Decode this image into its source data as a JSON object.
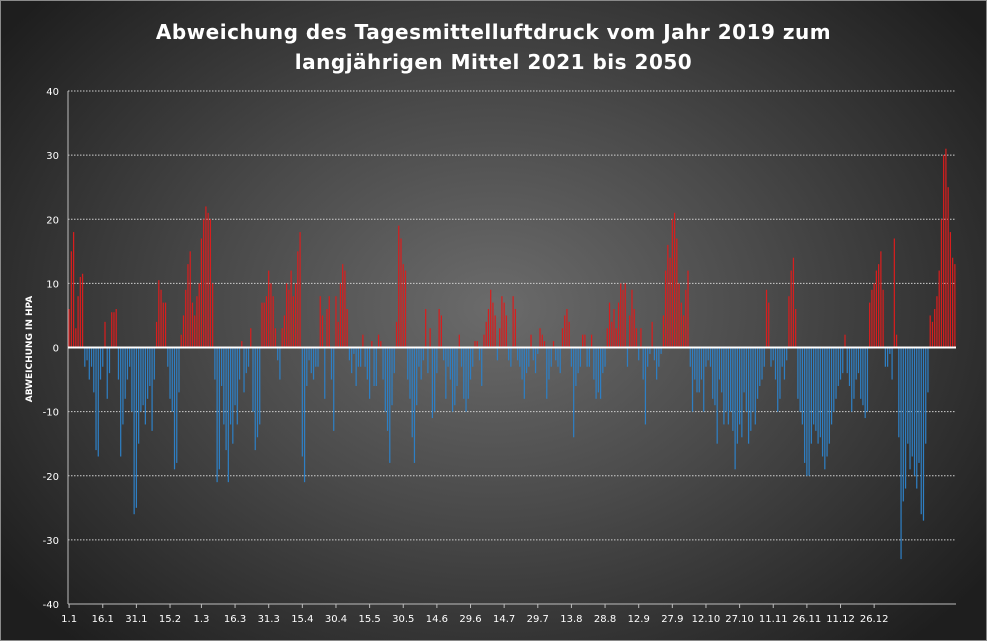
{
  "chart_data": {
    "type": "bar",
    "title_lines": [
      "Abweichung des Tagesmittelluftdruck vom Jahr 2019 zum",
      "langjährigen Mittel 2021 bis 2050"
    ],
    "ylabel": "ABWEICHUNG IN HPA",
    "ylim": [
      -40,
      40
    ],
    "yticks": [
      40,
      30,
      20,
      10,
      0,
      -10,
      -20,
      -30,
      -40
    ],
    "grid": true,
    "xtick_labels": [
      "1.1",
      "16.1",
      "31.1",
      "15.2",
      "1.3",
      "16.3",
      "31.3",
      "15.4",
      "30.4",
      "15.5",
      "30.5",
      "14.6",
      "29.6",
      "14.7",
      "29.7",
      "13.8",
      "28.8",
      "12.9",
      "27.9",
      "12.10",
      "27.10",
      "11.11",
      "26.11",
      "11.12",
      "26.12"
    ],
    "xtick_day_index": [
      0,
      15,
      30,
      45,
      59,
      74,
      89,
      104,
      119,
      134,
      149,
      164,
      179,
      194,
      209,
      224,
      239,
      254,
      269,
      284,
      299,
      314,
      329,
      344,
      359
    ],
    "colors": {
      "positive": "#d81e1e",
      "negative": "#2e7fc4",
      "zero_line": "#ffffff",
      "grid": "#cfcfcf"
    },
    "values": [
      6,
      15,
      18,
      3,
      8,
      11,
      11.5,
      -3,
      -2,
      -5,
      -3,
      -7,
      -16,
      -17,
      -5,
      -3,
      4,
      -8,
      -4,
      5.5,
      5.5,
      6,
      -5,
      -17,
      -12,
      -8,
      -5,
      -3,
      -10,
      -26,
      -25,
      -15,
      -10,
      -9,
      -12,
      -8,
      -6,
      -13,
      -5,
      4,
      10.5,
      9,
      7,
      7,
      -3,
      -8,
      -10,
      -19,
      -18,
      -7,
      2,
      5,
      9,
      13,
      15,
      7,
      5,
      8,
      10,
      17,
      20,
      22,
      21,
      20,
      10,
      -5,
      -21,
      -19,
      -6,
      -12,
      -16,
      -21,
      -12,
      -15,
      -9,
      -12,
      -5,
      1,
      -7,
      -4,
      -3,
      3,
      -10,
      -16,
      -14,
      -12,
      7,
      7,
      8,
      12,
      10,
      8,
      3,
      -2,
      -5,
      3,
      5,
      10,
      9,
      12,
      8,
      10,
      15,
      18,
      -17,
      -21,
      -6,
      -2,
      -4,
      -5,
      -3,
      -3,
      8,
      5,
      -8,
      6,
      8,
      -5,
      -13,
      8,
      4,
      10,
      13,
      12,
      6,
      -2,
      -4,
      -1,
      -6,
      -3,
      -3,
      2,
      -3,
      -5,
      -8,
      1,
      -6,
      -6,
      2,
      1,
      -5,
      -10,
      -13,
      -18,
      -9,
      -4,
      4,
      19,
      17,
      13,
      12,
      -5,
      -8,
      -14,
      -18,
      -9,
      -3,
      -5,
      -2,
      6,
      -4,
      3,
      -11,
      -10,
      -4,
      6,
      5,
      -2,
      -8,
      -3,
      -5,
      -10,
      -9,
      -6,
      2,
      -3,
      -8,
      -10,
      -8,
      -5,
      -3,
      1,
      1,
      -2,
      -6,
      2,
      4,
      6,
      9,
      7,
      5,
      -2,
      3,
      8,
      7,
      5,
      -2,
      -3,
      8,
      6,
      -2,
      -3,
      -5,
      -8,
      -4,
      -3,
      2,
      -2,
      -4,
      -1,
      3,
      2,
      1,
      -8,
      -5,
      -3,
      1,
      -2,
      -3,
      -4,
      3,
      5,
      6,
      4,
      -3,
      -14,
      -6,
      -4,
      -3,
      2,
      2,
      -3,
      -3,
      2,
      -5,
      -8,
      -7,
      -8,
      -4,
      -3,
      3,
      7,
      4,
      6,
      3,
      7,
      10,
      9,
      10,
      -3,
      5,
      9,
      6,
      3,
      -2,
      3,
      -5,
      -12,
      -3,
      -1,
      4,
      -2,
      -5,
      -3,
      -1,
      5,
      12,
      16,
      14,
      20,
      21,
      17,
      10,
      7,
      5,
      9,
      12,
      -3,
      -10,
      -5,
      -7,
      -7,
      -5,
      -10,
      -3,
      -2,
      -3,
      -8,
      -9,
      -15,
      -5,
      -7,
      -12,
      -10,
      -12,
      -10,
      -13,
      -19,
      -15,
      -12,
      -14,
      -7,
      -10,
      -15,
      -13,
      -10,
      -12,
      -8,
      -6,
      -5,
      -3,
      9,
      7,
      -3,
      -2,
      -5,
      -10,
      -8,
      -3,
      -5,
      -2,
      8,
      12,
      14,
      6,
      -8,
      -10,
      -12,
      -18,
      -20,
      -20,
      -15,
      -12,
      -13,
      -15,
      -14,
      -17,
      -19,
      -17,
      -15,
      -12,
      -10,
      -8,
      -6,
      -5,
      -4,
      2,
      -4,
      -6,
      -10,
      -8,
      -5,
      -4,
      -8,
      -9,
      -11,
      -10,
      7,
      9,
      10,
      12,
      13,
      15,
      9,
      -3,
      -3,
      -1,
      -5,
      17,
      2,
      -14,
      -33,
      -24,
      -22,
      -15,
      -19,
      -17,
      -20,
      -22,
      -18,
      -26,
      -27,
      -15,
      -7,
      5,
      4,
      6,
      8,
      12,
      20,
      30,
      31,
      25,
      18,
      14,
      13
    ]
  }
}
